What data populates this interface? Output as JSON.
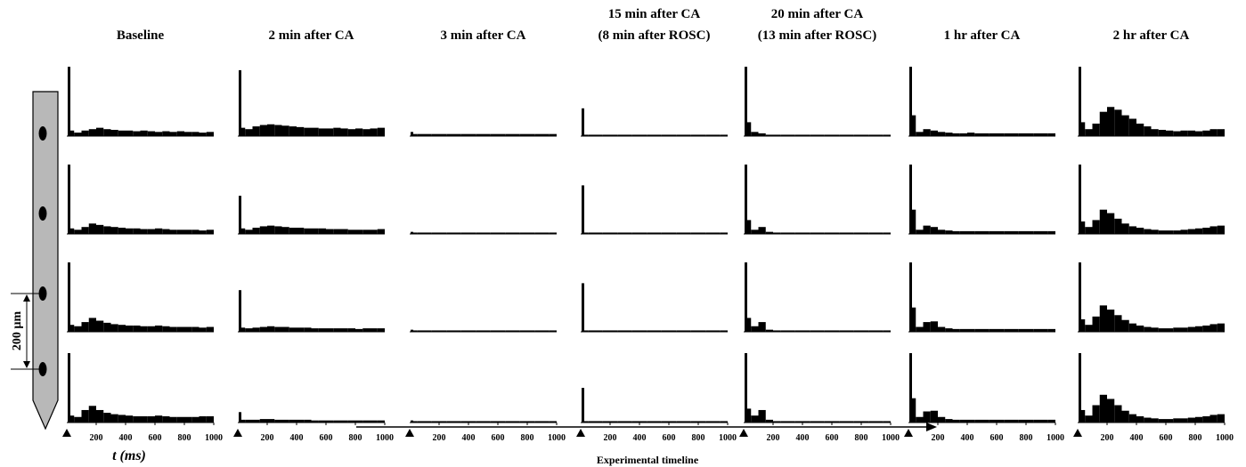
{
  "figure": {
    "x_label": "t (ms)",
    "timeline_label": "Experimental timeline",
    "scale_label": "200 µm"
  },
  "chart_data": [
    {
      "type": "histogram",
      "title": [
        "Baseline"
      ],
      "color": "#000000",
      "xlim": [
        0,
        1000
      ],
      "xticks": [
        200,
        400,
        600,
        800,
        1000
      ],
      "ylim": [
        0,
        100
      ],
      "bins": [
        0,
        20,
        50,
        100,
        150,
        200,
        250,
        300,
        350,
        400,
        450,
        500,
        550,
        600,
        650,
        700,
        750,
        800,
        850,
        900,
        950,
        1000
      ],
      "series": [
        {
          "values": [
            100,
            8,
            5,
            8,
            10,
            12,
            10,
            9,
            8,
            8,
            7,
            8,
            7,
            6,
            7,
            6,
            7,
            6,
            6,
            5,
            6
          ]
        },
        {
          "values": [
            100,
            8,
            6,
            10,
            15,
            13,
            11,
            10,
            9,
            8,
            8,
            7,
            7,
            8,
            7,
            6,
            6,
            6,
            6,
            5,
            6
          ]
        },
        {
          "values": [
            100,
            10,
            8,
            14,
            20,
            16,
            13,
            11,
            10,
            9,
            9,
            8,
            8,
            9,
            8,
            7,
            7,
            7,
            7,
            6,
            7
          ]
        },
        {
          "values": [
            100,
            10,
            8,
            18,
            24,
            18,
            14,
            12,
            11,
            10,
            9,
            9,
            9,
            10,
            9,
            8,
            8,
            8,
            8,
            9,
            9
          ]
        }
      ]
    },
    {
      "type": "histogram",
      "title": [
        "2 min after CA"
      ],
      "color": "#000000",
      "xlim": [
        0,
        1000
      ],
      "xticks": [
        200,
        400,
        600,
        800,
        1000
      ],
      "ylim": [
        0,
        100
      ],
      "bins": [
        0,
        20,
        50,
        100,
        150,
        200,
        250,
        300,
        350,
        400,
        450,
        500,
        550,
        600,
        650,
        700,
        750,
        800,
        850,
        900,
        950,
        1000
      ],
      "series": [
        {
          "values": [
            95,
            12,
            10,
            14,
            16,
            17,
            16,
            15,
            14,
            13,
            12,
            12,
            11,
            11,
            12,
            11,
            10,
            11,
            10,
            11,
            12
          ]
        },
        {
          "values": [
            55,
            8,
            6,
            9,
            11,
            12,
            11,
            10,
            9,
            9,
            8,
            8,
            8,
            7,
            7,
            7,
            6,
            6,
            6,
            6,
            7
          ]
        },
        {
          "values": [
            60,
            6,
            5,
            6,
            7,
            8,
            7,
            7,
            6,
            6,
            6,
            5,
            5,
            5,
            5,
            5,
            5,
            4,
            5,
            5,
            5
          ]
        },
        {
          "values": [
            15,
            4,
            4,
            4,
            5,
            5,
            4,
            4,
            4,
            4,
            4,
            3,
            3,
            3,
            3,
            3,
            3,
            3,
            3,
            3,
            3
          ]
        }
      ]
    },
    {
      "type": "histogram",
      "title": [
        "3 min after CA"
      ],
      "color": "#000000",
      "xlim": [
        0,
        1000
      ],
      "xticks": [
        200,
        400,
        600,
        800,
        1000
      ],
      "ylim": [
        0,
        100
      ],
      "bins": [
        0,
        20,
        50,
        100,
        150,
        200,
        250,
        300,
        350,
        400,
        450,
        500,
        550,
        600,
        650,
        700,
        750,
        800,
        850,
        900,
        950,
        1000
      ],
      "series": [
        {
          "values": [
            6,
            3,
            3,
            3,
            3,
            3,
            3,
            3,
            3,
            3,
            3,
            3,
            3,
            3,
            3,
            3,
            3,
            3,
            3,
            3,
            3
          ]
        },
        {
          "values": [
            3,
            2,
            2,
            2,
            2,
            2,
            2,
            2,
            2,
            2,
            2,
            2,
            2,
            2,
            2,
            2,
            2,
            2,
            2,
            2,
            2
          ]
        },
        {
          "values": [
            3,
            2,
            2,
            2,
            2,
            2,
            2,
            2,
            2,
            2,
            2,
            2,
            2,
            2,
            2,
            2,
            2,
            2,
            2,
            2,
            2
          ]
        },
        {
          "values": [
            3,
            2,
            2,
            2,
            2,
            2,
            2,
            2,
            2,
            2,
            2,
            2,
            2,
            2,
            2,
            2,
            2,
            2,
            2,
            2,
            2
          ]
        }
      ]
    },
    {
      "type": "histogram",
      "title": [
        "15 min after CA",
        "(8 min after ROSC)"
      ],
      "color": "#000000",
      "xlim": [
        0,
        1000
      ],
      "xticks": [
        200,
        400,
        600,
        800,
        1000
      ],
      "ylim": [
        0,
        100
      ],
      "bins": [
        0,
        20,
        50,
        100,
        150,
        200,
        250,
        300,
        350,
        400,
        450,
        500,
        550,
        600,
        650,
        700,
        750,
        800,
        850,
        900,
        950,
        1000
      ],
      "series": [
        {
          "values": [
            40,
            2,
            2,
            2,
            2,
            2,
            2,
            2,
            2,
            2,
            2,
            2,
            2,
            2,
            2,
            2,
            2,
            2,
            2,
            2,
            2
          ]
        },
        {
          "values": [
            70,
            2,
            2,
            2,
            2,
            2,
            2,
            2,
            2,
            2,
            2,
            2,
            2,
            2,
            2,
            2,
            2,
            2,
            2,
            2,
            2
          ]
        },
        {
          "values": [
            70,
            2,
            2,
            2,
            2,
            2,
            2,
            2,
            2,
            2,
            2,
            2,
            2,
            2,
            2,
            2,
            2,
            2,
            2,
            2,
            2
          ]
        },
        {
          "values": [
            50,
            2,
            2,
            2,
            2,
            2,
            2,
            2,
            2,
            2,
            2,
            2,
            2,
            2,
            2,
            2,
            2,
            2,
            2,
            2,
            2
          ]
        }
      ]
    },
    {
      "type": "histogram",
      "title": [
        "20 min after CA",
        "(13 min after ROSC)"
      ],
      "color": "#000000",
      "xlim": [
        0,
        1000
      ],
      "xticks": [
        200,
        400,
        600,
        800,
        1000
      ],
      "ylim": [
        0,
        100
      ],
      "bins": [
        0,
        20,
        50,
        100,
        150,
        200,
        250,
        300,
        350,
        400,
        450,
        500,
        550,
        600,
        650,
        700,
        750,
        800,
        850,
        900,
        950,
        1000
      ],
      "series": [
        {
          "values": [
            100,
            20,
            6,
            4,
            2,
            2,
            2,
            2,
            2,
            2,
            2,
            2,
            2,
            2,
            2,
            2,
            2,
            2,
            2,
            2,
            2
          ]
        },
        {
          "values": [
            100,
            20,
            6,
            10,
            3,
            2,
            2,
            2,
            2,
            2,
            2,
            2,
            2,
            2,
            2,
            2,
            2,
            2,
            2,
            2,
            2
          ]
        },
        {
          "values": [
            100,
            20,
            8,
            14,
            3,
            2,
            2,
            2,
            2,
            2,
            2,
            2,
            2,
            2,
            2,
            2,
            2,
            2,
            2,
            2,
            2
          ]
        },
        {
          "values": [
            100,
            20,
            10,
            18,
            4,
            2,
            2,
            2,
            2,
            2,
            2,
            2,
            2,
            2,
            2,
            2,
            2,
            2,
            2,
            2,
            2
          ]
        }
      ]
    },
    {
      "type": "histogram",
      "title": [
        "1 hr after CA"
      ],
      "color": "#000000",
      "xlim": [
        0,
        1000
      ],
      "xticks": [
        200,
        400,
        600,
        800,
        1000
      ],
      "ylim": [
        0,
        100
      ],
      "bins": [
        0,
        20,
        50,
        100,
        150,
        200,
        250,
        300,
        350,
        400,
        450,
        500,
        550,
        600,
        650,
        700,
        750,
        800,
        850,
        900,
        950,
        1000
      ],
      "series": [
        {
          "values": [
            100,
            30,
            6,
            10,
            8,
            6,
            5,
            4,
            4,
            5,
            4,
            4,
            4,
            4,
            4,
            4,
            4,
            4,
            4,
            4,
            4
          ]
        },
        {
          "values": [
            100,
            35,
            6,
            12,
            10,
            6,
            5,
            4,
            4,
            4,
            4,
            4,
            4,
            4,
            4,
            4,
            4,
            4,
            4,
            4,
            4
          ]
        },
        {
          "values": [
            100,
            35,
            7,
            14,
            15,
            7,
            5,
            4,
            4,
            4,
            4,
            4,
            4,
            4,
            4,
            4,
            4,
            4,
            4,
            4,
            4
          ]
        },
        {
          "values": [
            100,
            35,
            8,
            16,
            17,
            8,
            5,
            4,
            4,
            4,
            4,
            4,
            4,
            4,
            4,
            4,
            4,
            4,
            4,
            4,
            4
          ]
        }
      ]
    },
    {
      "type": "histogram",
      "title": [
        "2 hr after CA"
      ],
      "color": "#000000",
      "xlim": [
        0,
        1000
      ],
      "xticks": [
        200,
        400,
        600,
        800,
        1000
      ],
      "ylim": [
        0,
        100
      ],
      "bins": [
        0,
        20,
        50,
        100,
        150,
        200,
        250,
        300,
        350,
        400,
        450,
        500,
        550,
        600,
        650,
        700,
        750,
        800,
        850,
        900,
        950,
        1000
      ],
      "series": [
        {
          "values": [
            100,
            20,
            10,
            18,
            35,
            42,
            38,
            30,
            25,
            18,
            14,
            10,
            9,
            8,
            7,
            8,
            8,
            7,
            8,
            10,
            10
          ]
        },
        {
          "values": [
            100,
            18,
            10,
            20,
            35,
            30,
            22,
            15,
            11,
            9,
            7,
            6,
            5,
            5,
            5,
            6,
            7,
            8,
            9,
            11,
            12
          ]
        },
        {
          "values": [
            100,
            18,
            10,
            22,
            38,
            32,
            24,
            17,
            12,
            9,
            7,
            6,
            5,
            5,
            6,
            6,
            7,
            8,
            9,
            11,
            12
          ]
        },
        {
          "values": [
            100,
            18,
            10,
            25,
            40,
            34,
            25,
            17,
            12,
            9,
            7,
            6,
            5,
            5,
            6,
            6,
            7,
            8,
            9,
            11,
            12
          ]
        }
      ]
    }
  ]
}
